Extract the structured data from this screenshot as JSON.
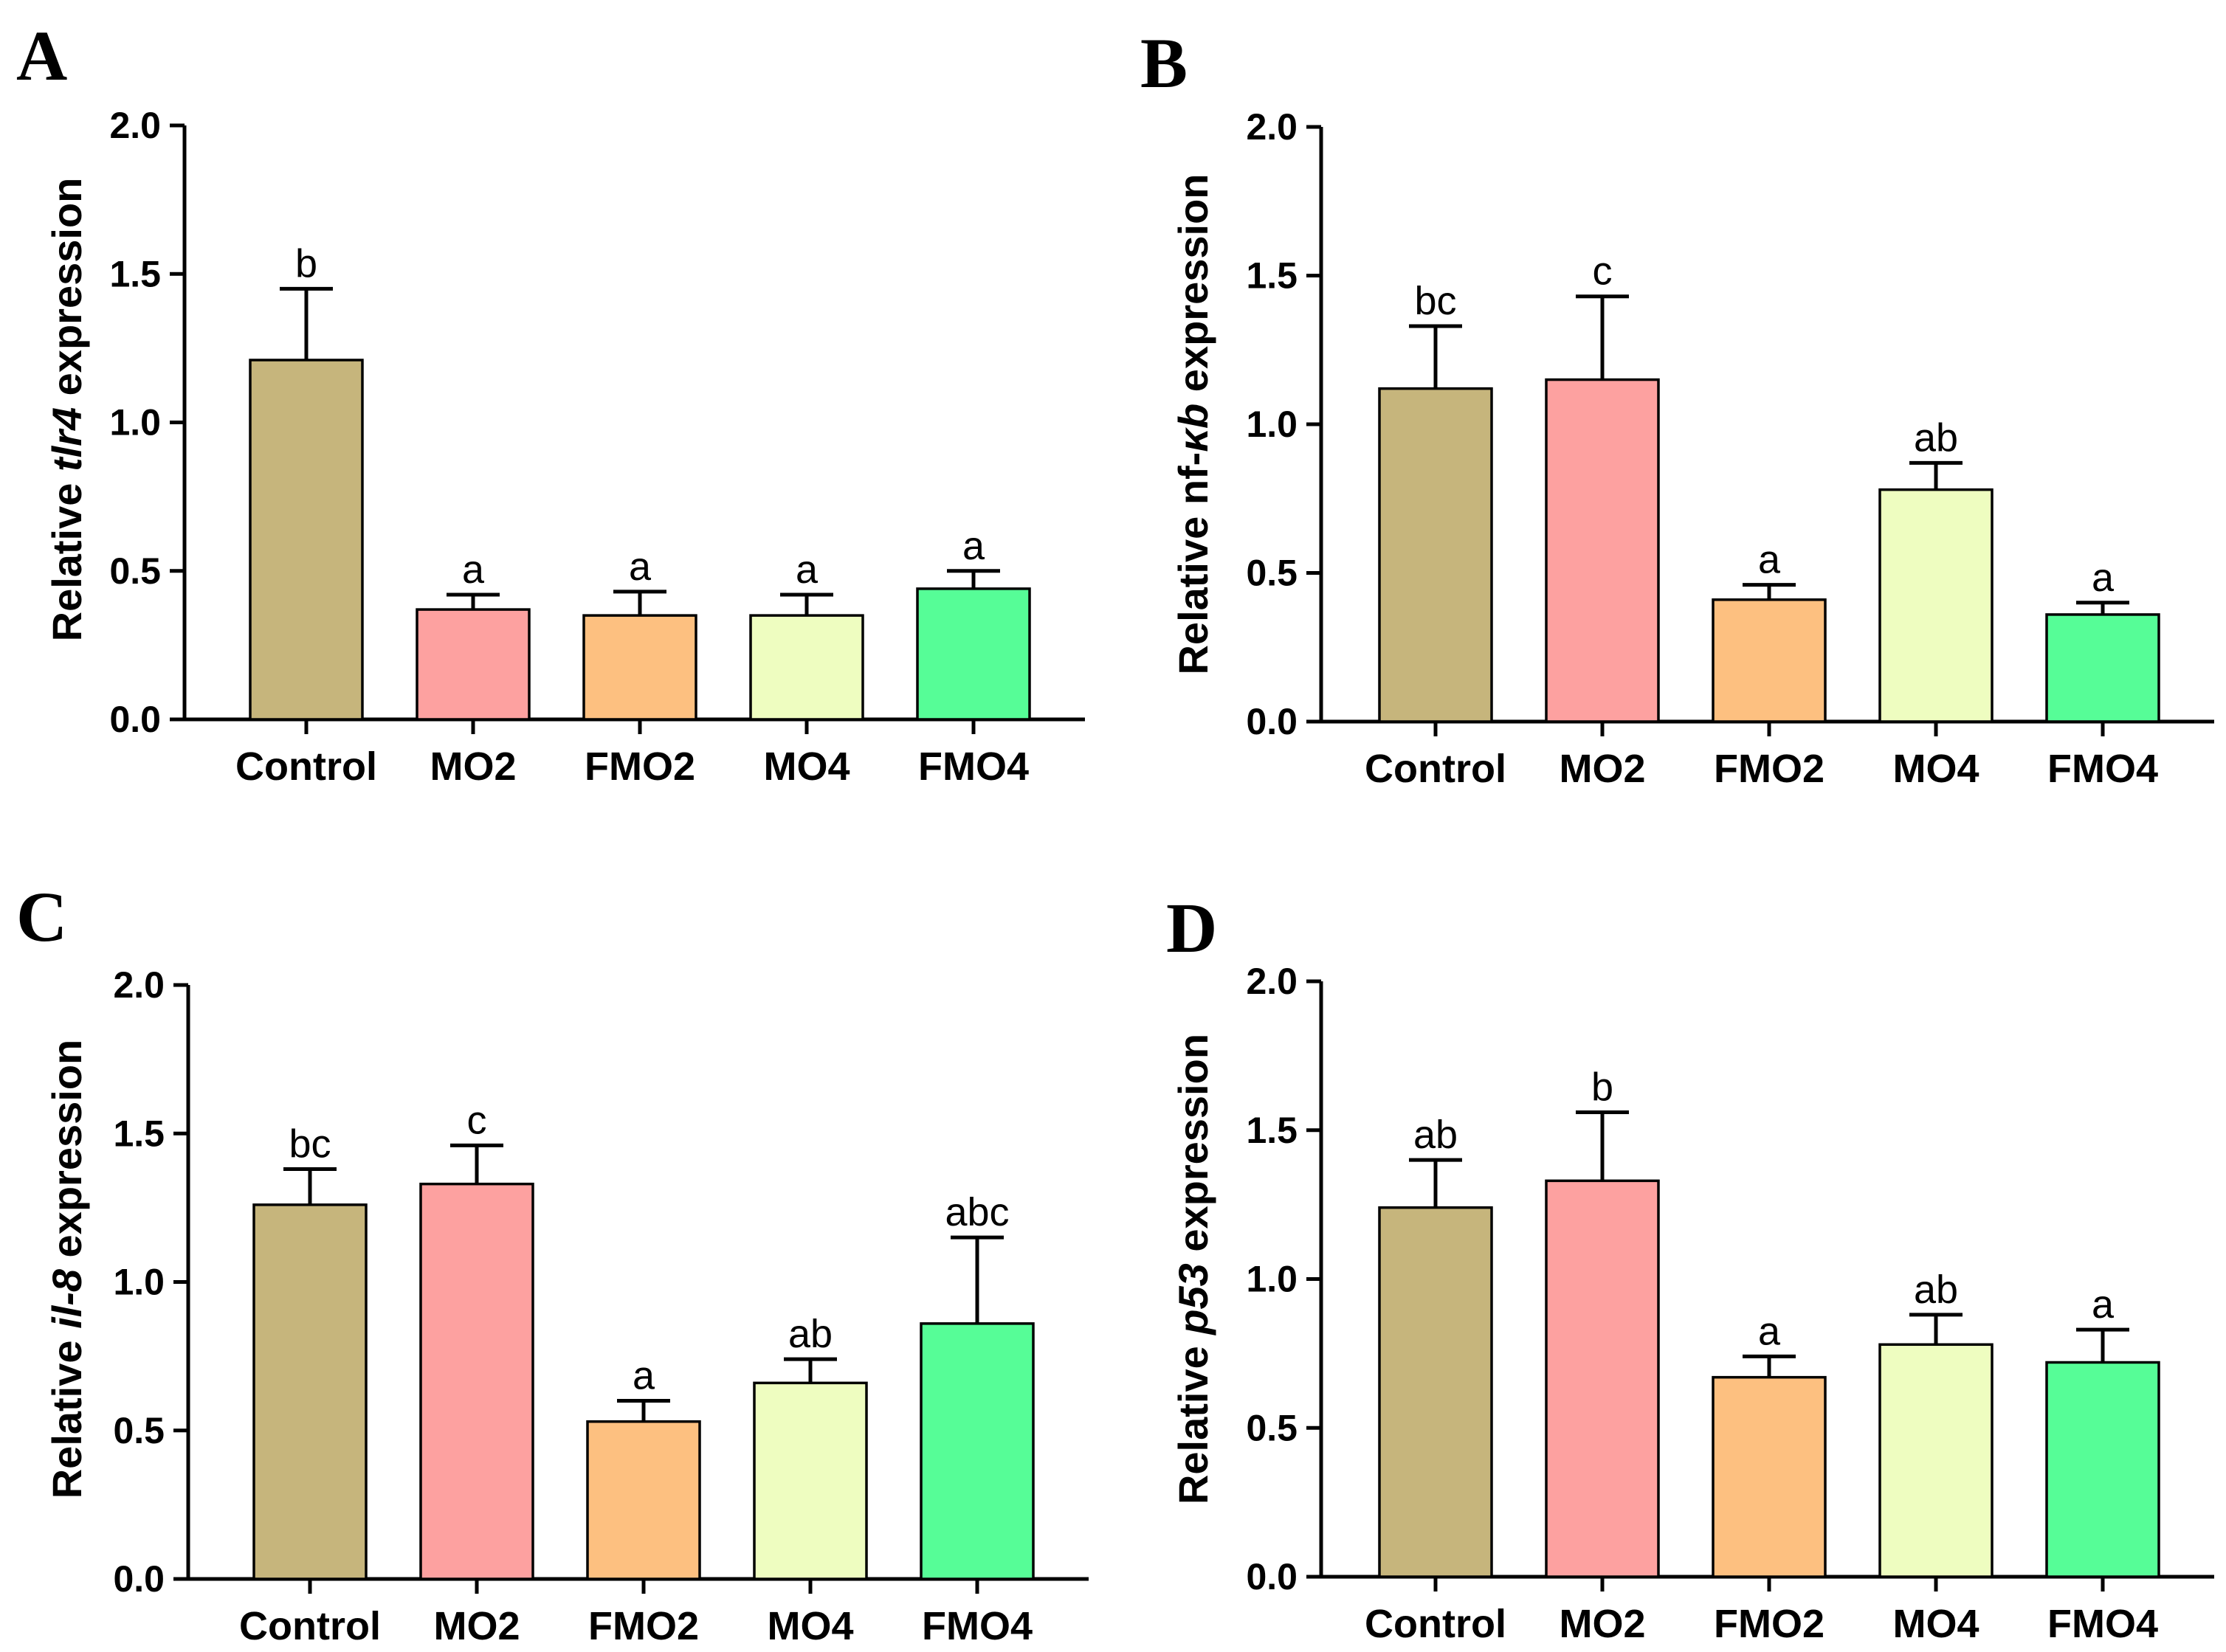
{
  "colors": {
    "Control": "#c6b57c",
    "MO2": "#fda1a0",
    "FMO2": "#fdc080",
    "MO4": "#eefdc0",
    "FMO4": "#56fd97"
  },
  "chart_data": [
    {
      "type": "bar",
      "panel": "A",
      "ylabel_prefix": "Relative ",
      "ylabel_gene": "tlr4",
      "ylabel_suffix": " expression",
      "ylim": [
        0,
        2.0
      ],
      "yticks": [
        "0.0",
        "0.5",
        "1.0",
        "1.5",
        "2.0"
      ],
      "categories": [
        "Control",
        "MO2",
        "FMO2",
        "MO4",
        "FMO4"
      ],
      "values": [
        1.21,
        0.37,
        0.35,
        0.35,
        0.44
      ],
      "errors": [
        0.24,
        0.05,
        0.08,
        0.07,
        0.06
      ],
      "significance": [
        "b",
        "a",
        "a",
        "a",
        "a"
      ]
    },
    {
      "type": "bar",
      "panel": "B",
      "ylabel_prefix": "Relative nf-",
      "ylabel_gene": "κb",
      "ylabel_suffix": " expression",
      "ylim": [
        0,
        2.0
      ],
      "yticks": [
        "0.0",
        "0.5",
        "1.0",
        "1.5",
        "2.0"
      ],
      "categories": [
        "Control",
        "MO2",
        "FMO2",
        "MO4",
        "FMO4"
      ],
      "values": [
        1.12,
        1.15,
        0.41,
        0.78,
        0.36
      ],
      "errors": [
        0.21,
        0.28,
        0.05,
        0.09,
        0.04
      ],
      "significance": [
        "bc",
        "c",
        "a",
        "ab",
        "a"
      ]
    },
    {
      "type": "bar",
      "panel": "C",
      "ylabel_prefix": "Relative ",
      "ylabel_gene": "il-8",
      "ylabel_suffix": " expression",
      "ylim": [
        0,
        2.0
      ],
      "yticks": [
        "0.0",
        "0.5",
        "1.0",
        "1.5",
        "2.0"
      ],
      "categories": [
        "Control",
        "MO2",
        "FMO2",
        "MO4",
        "FMO4"
      ],
      "values": [
        1.26,
        1.33,
        0.53,
        0.66,
        0.86
      ],
      "errors": [
        0.12,
        0.13,
        0.07,
        0.08,
        0.29
      ],
      "significance": [
        "bc",
        "c",
        "a",
        "ab",
        "abc"
      ]
    },
    {
      "type": "bar",
      "panel": "D",
      "ylabel_prefix": "Relative ",
      "ylabel_gene": "p53",
      "ylabel_suffix": " expression",
      "ylim": [
        0,
        2.0
      ],
      "yticks": [
        "0.0",
        "0.5",
        "1.0",
        "1.5",
        "2.0"
      ],
      "categories": [
        "Control",
        "MO2",
        "FMO2",
        "MO4",
        "FMO4"
      ],
      "values": [
        1.24,
        1.33,
        0.67,
        0.78,
        0.72
      ],
      "errors": [
        0.16,
        0.23,
        0.07,
        0.1,
        0.11
      ],
      "significance": [
        "ab",
        "b",
        "a",
        "ab",
        "a"
      ]
    }
  ]
}
